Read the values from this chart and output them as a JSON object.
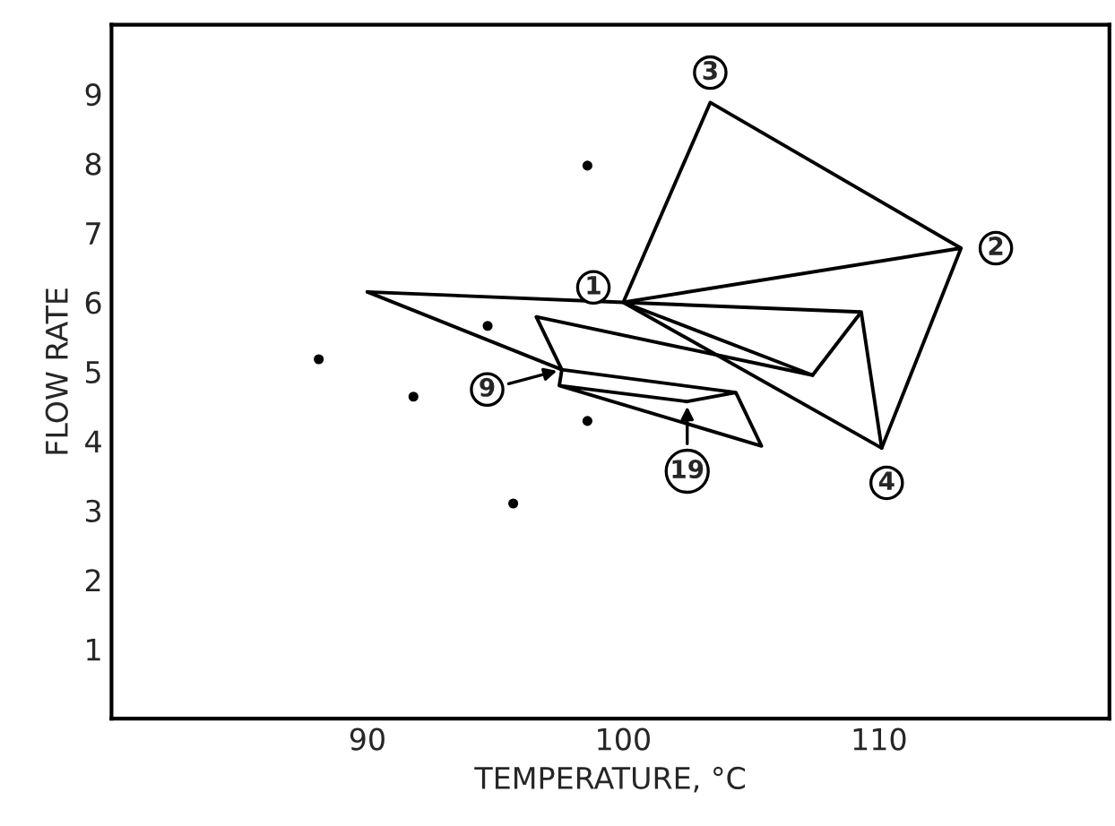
{
  "chart_data": {
    "type": "line",
    "xlabel": "TEMPERATURE, °C",
    "ylabel": "FLOW RATE",
    "xlim": [
      80,
      119
    ],
    "ylim": [
      0,
      10
    ],
    "xticks": [
      90,
      100,
      110
    ],
    "yticks": [
      1,
      2,
      3,
      4,
      5,
      6,
      7,
      8,
      9
    ],
    "grid": false,
    "series": [
      {
        "color": "#000000",
        "x": [
          100,
          103.4,
          113.2,
          100,
          110.1,
          113.2
        ],
        "values": [
          6.0,
          8.88,
          6.78,
          6.0,
          3.9,
          6.78
        ]
      },
      {
        "color": "#000000",
        "x": [
          110.1,
          109.3,
          100,
          90,
          109.3,
          107.4,
          100
        ],
        "values": [
          3.9,
          5.86,
          6.0,
          6.15,
          5.86,
          4.95,
          6.0
        ]
      },
      {
        "color": "#000000",
        "x": [
          90,
          97.6,
          96.6,
          107.4
        ],
        "values": [
          6.15,
          5.03,
          5.79,
          4.95
        ]
      },
      {
        "color": "#000000",
        "x": [
          104.4,
          97.6,
          97.5,
          102.5,
          104.4,
          105.4,
          97.5
        ],
        "values": [
          4.7,
          5.03,
          4.8,
          4.57,
          4.7,
          3.93,
          4.8
        ]
      },
      {
        "type": "scatter",
        "marker": "circle",
        "color": "#000000",
        "x": [
          88.1,
          91.8,
          94.7,
          95.7,
          98.6,
          98.6
        ],
        "values": [
          5.18,
          4.64,
          5.66,
          3.1,
          4.29,
          7.97
        ]
      }
    ],
    "annotations": [
      {
        "text": "1",
        "x": 100,
        "y": 6.0
      },
      {
        "text": "2",
        "x": 113.2,
        "y": 6.78
      },
      {
        "text": "3",
        "x": 103.4,
        "y": 8.88
      },
      {
        "text": "4",
        "x": 110.1,
        "y": 3.9
      },
      {
        "text": "9",
        "x": 97.6,
        "y": 5.03
      },
      {
        "text": "19",
        "x": 102.5,
        "y": 4.57
      }
    ]
  }
}
